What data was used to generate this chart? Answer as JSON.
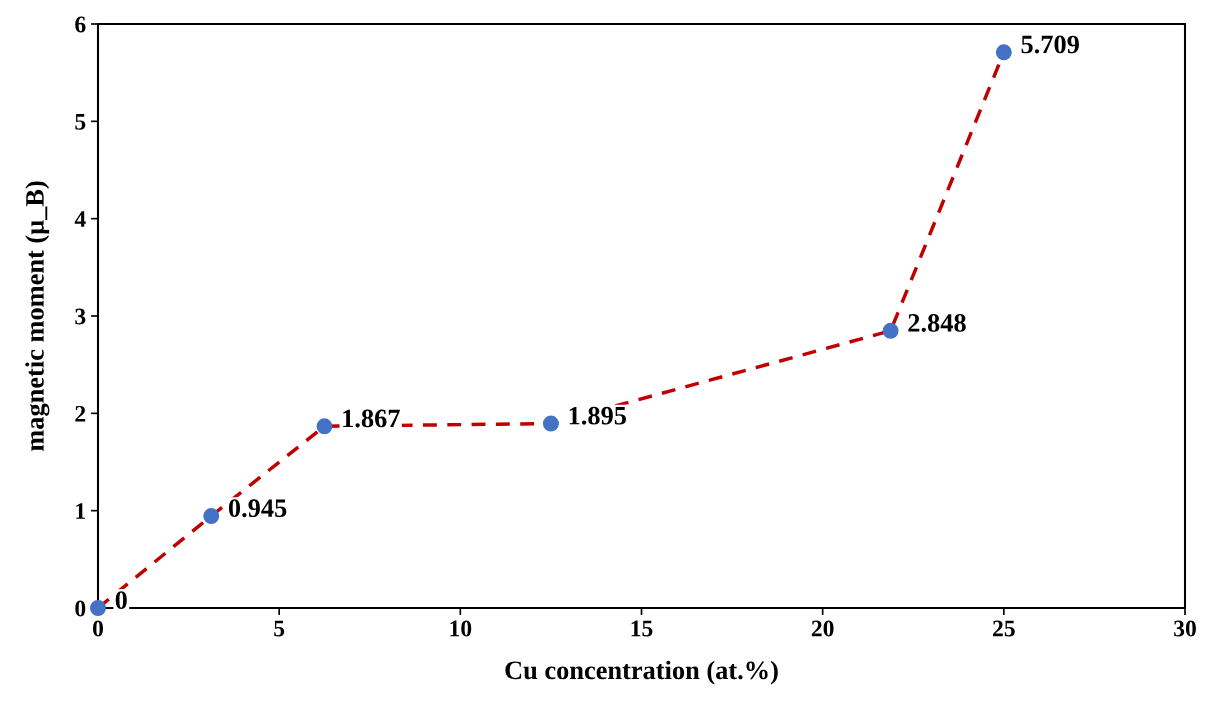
{
  "chart_data": {
    "type": "line",
    "xlabel": "Cu concentration (at.%)",
    "ylabel": "magnetic moment (μ_B)",
    "x": [
      0,
      3.125,
      6.25,
      12.5,
      21.875,
      25
    ],
    "series": [
      {
        "color": "#c00000",
        "colors": [
          "#4472c4",
          "#4472c4",
          "#4472c4",
          "#4472c4",
          "#4472c4",
          "#4472c4"
        ],
        "values": [
          0,
          0.945,
          1.867,
          1.895,
          2.848,
          5.709
        ]
      }
    ],
    "xlim": [
      0,
      30
    ],
    "xticks": [
      0,
      5,
      10,
      15,
      20,
      25,
      30
    ],
    "ylim": [
      0,
      6
    ],
    "yticks": [
      0,
      1,
      2,
      3,
      4,
      5,
      6
    ],
    "data_labels": true,
    "grid": false,
    "legend": false,
    "marker": "circle",
    "line_style": "dashed"
  }
}
